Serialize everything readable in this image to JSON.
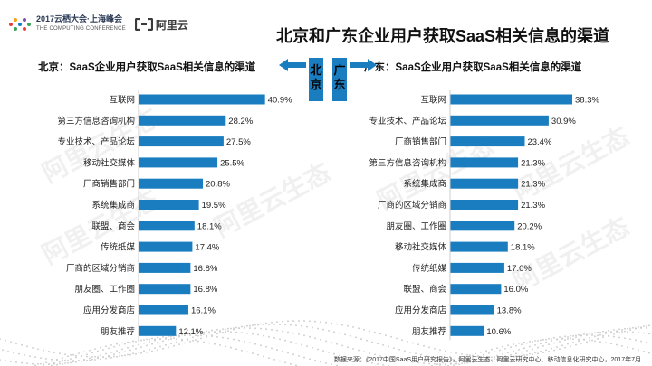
{
  "header": {
    "logo_line1": "2017云栖大会·上海峰会",
    "logo_line2": "THE COMPUTING CONFERENCE",
    "brand": "阿里云",
    "title": "北京和广东企业用户获取SaaS相关信息的渠道"
  },
  "center": {
    "beijing": "北京",
    "guangdong": "广东"
  },
  "watermark_text": "阿里云生态",
  "footer": {
    "source": "数据来源：《2017中国SaaS用户研究报告》，阿里云生态、阿里云研究中心、移动信息化研究中心，2017年7月"
  },
  "colors": {
    "bar": "#1a7dc0",
    "accent": "#1a7dc0"
  },
  "chart_data": [
    {
      "type": "bar",
      "orientation": "horizontal",
      "title": "北京：SaaS企业用户获取SaaS相关信息的渠道",
      "categories": [
        "互联网",
        "第三方信息咨询机构",
        "专业技术、产品论坛",
        "移动社交媒体",
        "厂商销售部门",
        "系统集成商",
        "联盟、商会",
        "传统纸媒",
        "厂商的区域分销商",
        "朋友圈、工作圈",
        "应用分发商店",
        "朋友推荐"
      ],
      "values": [
        40.9,
        28.2,
        27.5,
        25.5,
        20.8,
        19.5,
        18.1,
        17.4,
        16.8,
        16.8,
        16.1,
        12.1
      ],
      "labels": [
        "40.9%",
        "28.2%",
        "27.5%",
        "25.5%",
        "20.8%",
        "19.5%",
        "18.1%",
        "17.4%",
        "16.8%",
        "16.8%",
        "16.1%",
        "12.1%"
      ],
      "xlim": [
        0,
        41
      ]
    },
    {
      "type": "bar",
      "orientation": "horizontal",
      "title": "广东：SaaS企业用户获取SaaS相关信息的渠道",
      "categories": [
        "互联网",
        "专业技术、产品论坛",
        "厂商销售部门",
        "第三方信息咨询机构",
        "系统集成商",
        "厂商的区域分销商",
        "朋友圈、工作圈",
        "移动社交媒体",
        "传统纸媒",
        "联盟、商会",
        "应用分发商店",
        "朋友推荐"
      ],
      "values": [
        38.3,
        30.9,
        23.4,
        21.3,
        21.3,
        21.3,
        20.2,
        18.1,
        17.0,
        16.0,
        13.8,
        10.6
      ],
      "labels": [
        "38.3%",
        "30.9%",
        "23.4%",
        "21.3%",
        "21.3%",
        "21.3%",
        "20.2%",
        "18.1%",
        "17.0%",
        "16.0%",
        "13.8%",
        "10.6%"
      ],
      "xlim": [
        0,
        38.3
      ]
    }
  ]
}
